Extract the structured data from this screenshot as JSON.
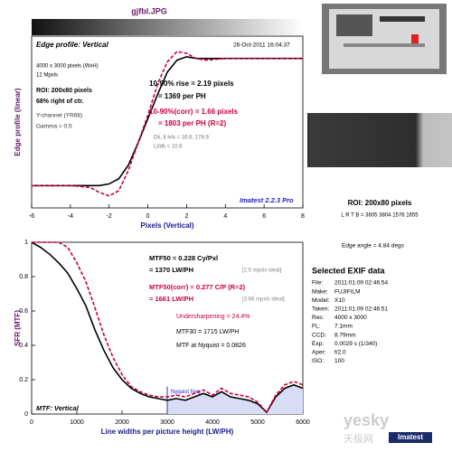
{
  "title": "gjfbl.JPG",
  "chart_data": [
    {
      "type": "line",
      "xlabel": "Pixels (Vertical)",
      "ylabel": "Edge profile (linear)",
      "x": [
        -6,
        -5,
        -4,
        -3,
        -2.5,
        -2,
        -1.5,
        -1,
        -0.5,
        0,
        0.5,
        1,
        1.5,
        2,
        2.5,
        3,
        4,
        5,
        6,
        7,
        8
      ],
      "series": [
        {
          "color": "#000000",
          "style": "solid",
          "values": [
            0.13,
            0.13,
            0.13,
            0.13,
            0.13,
            0.14,
            0.17,
            0.25,
            0.38,
            0.52,
            0.66,
            0.79,
            0.86,
            0.88,
            0.87,
            0.87,
            0.87,
            0.87,
            0.87,
            0.87,
            0.87
          ]
        },
        {
          "color": "#c8003c",
          "style": "dashed",
          "values": [
            0.13,
            0.13,
            0.13,
            0.12,
            0.09,
            0.07,
            0.1,
            0.22,
            0.38,
            0.54,
            0.72,
            0.85,
            0.91,
            0.9,
            0.87,
            0.86,
            0.87,
            0.87,
            0.87,
            0.87,
            0.87
          ]
        }
      ],
      "xlim": [
        -6,
        8
      ],
      "xticks": [
        -6,
        -4,
        -2,
        0,
        2,
        4,
        6,
        8
      ],
      "ylim": [
        0,
        1
      ],
      "annotations": [
        "Edge profile: Vertical",
        "26-Oct-2011 16:04:37",
        "4000 x 3000 pixels (WxH)",
        "12 Mpxls",
        "ROI: 200x80 pixels",
        "68% right of ctr.",
        "Y-channel (YR68)",
        "Gamma = 0.5",
        "10-90% rise = 2.19 pixels",
        "= 1369 per PH",
        "10-90%(corr) = 1.66 pixels",
        "= 1803 per PH  (R=2)",
        "Dk, lt lvls = 16.6, 178.9",
        "Lt/dk = 10.6",
        "Imatest 2.2.3 Pro"
      ]
    },
    {
      "type": "line",
      "xlabel": "Line widths per picture height (LW/PH)",
      "ylabel": "SFR (MTF)",
      "x": [
        0,
        200,
        400,
        600,
        800,
        1000,
        1200,
        1400,
        1600,
        1800,
        2000,
        2200,
        2400,
        2600,
        2800,
        3000,
        3200,
        3400,
        3600,
        3800,
        4000,
        4200,
        4400,
        4600,
        4800,
        5000,
        5200,
        5400,
        5600,
        5800,
        6000
      ],
      "series": [
        {
          "color": "#000000",
          "style": "solid",
          "values": [
            1,
            0.97,
            0.93,
            0.88,
            0.82,
            0.73,
            0.63,
            0.49,
            0.37,
            0.27,
            0.2,
            0.15,
            0.12,
            0.1,
            0.09,
            0.08,
            0.09,
            0.08,
            0.1,
            0.12,
            0.1,
            0.13,
            0.1,
            0.09,
            0.08,
            0.06,
            0.01,
            0.1,
            0.15,
            0.17,
            0.15
          ]
        },
        {
          "color": "#c8003c",
          "style": "dashed",
          "values": [
            1,
            1,
            1,
            1,
            0.97,
            0.88,
            0.77,
            0.62,
            0.46,
            0.33,
            0.23,
            0.16,
            0.13,
            0.11,
            0.1,
            0.1,
            0.11,
            0.1,
            0.12,
            0.14,
            0.11,
            0.15,
            0.12,
            0.11,
            0.1,
            0.07,
            0.01,
            0.11,
            0.17,
            0.19,
            0.17
          ]
        }
      ],
      "xlim": [
        0,
        6000
      ],
      "xticks": [
        0,
        1000,
        2000,
        3000,
        4000,
        5000,
        6000
      ],
      "ylim": [
        0,
        1
      ],
      "yticks": [
        0,
        0.2,
        0.4,
        0.6,
        0.8,
        1
      ],
      "nyquist": 3000,
      "nyquist_label": "Nyquist freq.",
      "annotations": [
        "MTF50 = 0.228 Cy/Pxl",
        "= 1370 LW/PH",
        "[2.5 mpxls ideal]",
        "MTF50(corr) = 0.277 C/P  (R=2)",
        "= 1661 LW/PH",
        "[3.66 mpxls ideal]",
        "Undersharpening = 24.4%",
        "MTF30 = 1715 LW/PH",
        "MTF at Nyquist = 0.0826",
        "MTF: Vertical"
      ]
    }
  ],
  "side": {
    "roi": "ROI: 200x80 pixels",
    "lrtb": "L R T B = 3605 3804  1576 1655",
    "edge_angle": "Edge angle = 4.84 degs",
    "exif_title": "Selected EXIF data",
    "exif": [
      [
        "File:",
        "2011:01:09 02:46:54"
      ],
      [
        "Make:",
        "FUJIFILM"
      ],
      [
        "Model:",
        "X10"
      ],
      [
        "Taken:",
        "2011:01:09 02:46:51"
      ],
      [
        "Res:",
        "4000 x 3000"
      ],
      [
        "FL:",
        "7.1mm"
      ],
      [
        "CCD:",
        "8.79mm"
      ],
      [
        "Exp:",
        "0.0029 s  (1/340)"
      ],
      [
        "Aper:",
        "f/2.0"
      ],
      [
        "ISO:",
        "100"
      ]
    ],
    "watermark": "yesky",
    "watermark_cn": "天极网",
    "brand": "Imatest"
  }
}
